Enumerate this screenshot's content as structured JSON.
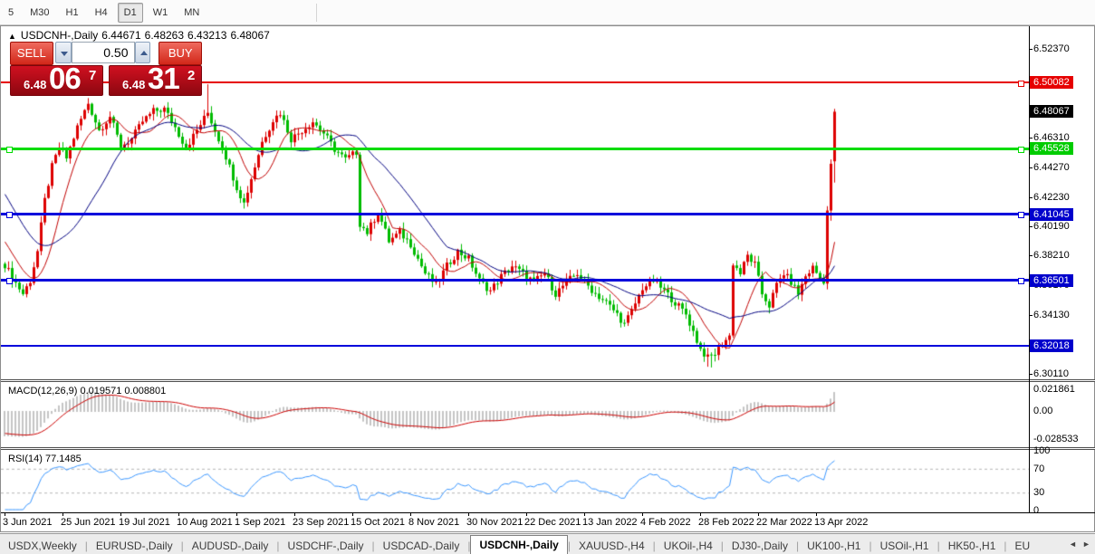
{
  "toolbar": {
    "timeframes": [
      "5",
      "M30",
      "H1",
      "H4",
      "D1",
      "W1",
      "MN"
    ],
    "active_timeframe": "D1"
  },
  "chart": {
    "title_symbol": "USDCNH-,Daily",
    "title_open": "6.44671",
    "title_high": "6.48263",
    "title_low": "6.43213",
    "title_close": "6.48067",
    "collapse_arrow": "▲",
    "trade_panel": {
      "sell_label": "SELL",
      "buy_label": "BUY",
      "volume": "0.50",
      "sell_price_prefix": "6.48",
      "sell_price_big": "06",
      "sell_price_sup": "7",
      "buy_price_prefix": "6.48",
      "buy_price_big": "31",
      "buy_price_sup": "2"
    },
    "macd_label": "MACD(12,26,9) 0.019571 0.008801",
    "rsi_label": "RSI(14) 77.1485"
  },
  "price_axis": {
    "ticks": [
      {
        "label": "6.52370",
        "price": 6.5237
      },
      {
        "label": "6.46310",
        "price": 6.4631
      },
      {
        "label": "6.44270",
        "price": 6.4427
      },
      {
        "label": "6.42230",
        "price": 6.4223
      },
      {
        "label": "6.40190",
        "price": 6.4019
      },
      {
        "label": "6.38210",
        "price": 6.3821
      },
      {
        "label": "6.36170",
        "price": 6.3617
      },
      {
        "label": "6.34130",
        "price": 6.3413
      },
      {
        "label": "6.30110",
        "price": 6.3011
      }
    ],
    "badges": [
      {
        "label": "6.50082",
        "price": 6.50082,
        "bg": "#e60000",
        "fg": "#ffffff"
      },
      {
        "label": "6.48067",
        "price": 6.48067,
        "bg": "#000000",
        "fg": "#ffffff"
      },
      {
        "label": "6.45528",
        "price": 6.45528,
        "bg": "#00cc00",
        "fg": "#ffffff"
      },
      {
        "label": "6.41045",
        "price": 6.41045,
        "bg": "#0000cc",
        "fg": "#ffffff"
      },
      {
        "label": "6.36501",
        "price": 6.36501,
        "bg": "#0000cc",
        "fg": "#ffffff"
      },
      {
        "label": "6.32018",
        "price": 6.32018,
        "bg": "#0000cc",
        "fg": "#ffffff"
      }
    ]
  },
  "macd_axis": [
    {
      "label": "0.021861",
      "value": 0.021861
    },
    {
      "label": "0.00",
      "value": 0
    },
    {
      "label": "-0.028533",
      "value": -0.028533
    }
  ],
  "rsi_axis": [
    {
      "label": "100",
      "value": 100
    },
    {
      "label": "70",
      "value": 70
    },
    {
      "label": "30",
      "value": 30
    },
    {
      "label": "0",
      "value": 0
    }
  ],
  "date_axis": [
    "3 Jun 2021",
    "25 Jun 2021",
    "19 Jul 2021",
    "10 Aug 2021",
    "1 Sep 2021",
    "23 Sep 2021",
    "15 Oct 2021",
    "8 Nov 2021",
    "30 Nov 2021",
    "22 Dec 2021",
    "13 Jan 2022",
    "4 Feb 2022",
    "28 Feb 2022",
    "22 Mar 2022",
    "13 Apr 2022"
  ],
  "tabs": {
    "items": [
      "USDX,Weekly",
      "EURUSD-,Daily",
      "AUDUSD-,Daily",
      "USDCHF-,Daily",
      "USDCAD-,Daily",
      "USDCNH-,Daily",
      "XAUUSD-,H4",
      "UKOil-,H4",
      "DJ30-,Daily",
      "UK100-,H1",
      "USOil-,H1",
      "HK50-,H1",
      "EU"
    ],
    "active": "USDCNH-,Daily",
    "scroll_left": "◄",
    "scroll_right": "►"
  },
  "chart_data": {
    "type": "candlestick",
    "symbol": "USDCNH",
    "timeframe": "Daily",
    "up_color": "#dd0000",
    "down_color": "#00bb00",
    "visible_range": {
      "start": "3 Jun 2021",
      "end": "22 Apr 2022",
      "bars": 230
    },
    "price_range": [
      6.3011,
      6.5237
    ],
    "last_bar_ohlc": {
      "open": 6.44671,
      "high": 6.48263,
      "low": 6.43213,
      "close": 6.48067
    },
    "horizontal_lines": [
      {
        "price": 6.50082,
        "color": "#e60000",
        "thickness": 2,
        "handles": [
          "right"
        ]
      },
      {
        "price": 6.45528,
        "color": "#00dc00",
        "thickness": 3,
        "handles": [
          "left",
          "right"
        ]
      },
      {
        "price": 6.41045,
        "color": "#0000dc",
        "thickness": 3,
        "handles": [
          "left",
          "right"
        ]
      },
      {
        "price": 6.36501,
        "color": "#0000dc",
        "thickness": 3,
        "handles": [
          "left",
          "right"
        ]
      },
      {
        "price": 6.32018,
        "color": "#0000dc",
        "thickness": 2,
        "handles": []
      }
    ],
    "price_anchors": [
      [
        0,
        6.376
      ],
      [
        2,
        6.367
      ],
      [
        5,
        6.356
      ],
      [
        7,
        6.365
      ],
      [
        9,
        6.385
      ],
      [
        11,
        6.42
      ],
      [
        13,
        6.443
      ],
      [
        15,
        6.456
      ],
      [
        17,
        6.449
      ],
      [
        20,
        6.47
      ],
      [
        23,
        6.4865
      ],
      [
        26,
        6.468
      ],
      [
        29,
        6.4775
      ],
      [
        32,
        6.457
      ],
      [
        35,
        6.462
      ],
      [
        38,
        6.474
      ],
      [
        41,
        6.481
      ],
      [
        44,
        6.4825
      ],
      [
        47,
        6.47
      ],
      [
        50,
        6.456
      ],
      [
        53,
        6.468
      ],
      [
        56,
        6.48
      ],
      [
        58,
        6.468
      ],
      [
        61,
        6.45
      ],
      [
        64,
        6.429
      ],
      [
        66,
        6.418
      ],
      [
        68,
        6.435
      ],
      [
        71,
        6.46
      ],
      [
        74,
        6.475
      ],
      [
        76,
        6.48
      ],
      [
        79,
        6.462
      ],
      [
        82,
        6.468
      ],
      [
        85,
        6.474
      ],
      [
        88,
        6.466
      ],
      [
        91,
        6.455
      ],
      [
        94,
        6.448
      ],
      [
        97,
        6.453
      ],
      [
        98,
        6.404
      ],
      [
        100,
        6.398
      ],
      [
        103,
        6.412
      ],
      [
        106,
        6.392
      ],
      [
        109,
        6.398
      ],
      [
        112,
        6.39
      ],
      [
        116,
        6.37
      ],
      [
        119,
        6.362
      ],
      [
        122,
        6.375
      ],
      [
        125,
        6.385
      ],
      [
        128,
        6.38
      ],
      [
        131,
        6.365
      ],
      [
        134,
        6.358
      ],
      [
        137,
        6.368
      ],
      [
        140,
        6.375
      ],
      [
        143,
        6.37
      ],
      [
        146,
        6.364
      ],
      [
        149,
        6.37
      ],
      [
        152,
        6.356
      ],
      [
        155,
        6.364
      ],
      [
        158,
        6.37
      ],
      [
        160,
        6.364
      ],
      [
        163,
        6.356
      ],
      [
        166,
        6.35
      ],
      [
        169,
        6.342
      ],
      [
        171,
        6.335
      ],
      [
        173,
        6.344
      ],
      [
        176,
        6.36
      ],
      [
        179,
        6.365
      ],
      [
        182,
        6.358
      ],
      [
        185,
        6.35
      ],
      [
        188,
        6.342
      ],
      [
        190,
        6.33
      ],
      [
        192,
        6.318
      ],
      [
        194,
        6.312
      ],
      [
        196,
        6.315
      ],
      [
        198,
        6.322
      ],
      [
        200,
        6.327
      ],
      [
        201,
        6.377
      ],
      [
        203,
        6.37
      ],
      [
        205,
        6.382
      ],
      [
        207,
        6.376
      ],
      [
        209,
        6.356
      ],
      [
        211,
        6.348
      ],
      [
        213,
        6.362
      ],
      [
        215,
        6.37
      ],
      [
        217,
        6.364
      ],
      [
        219,
        6.356
      ],
      [
        221,
        6.368
      ],
      [
        223,
        6.374
      ],
      [
        226,
        6.363
      ],
      [
        227,
        6.413
      ],
      [
        228,
        6.445
      ],
      [
        229,
        6.48067
      ]
    ],
    "wick_spikes": {
      "23": {
        "h": 6.49
      },
      "56": {
        "h": 6.4995
      },
      "194": {
        "l": 6.306
      },
      "195": {
        "l": 6.3055
      }
    },
    "last_candles": [
      {
        "i": 227,
        "o": 6.363,
        "h": 6.416,
        "l": 6.359,
        "c": 6.413
      },
      {
        "i": 228,
        "o": 6.413,
        "h": 6.448,
        "l": 6.406,
        "c": 6.445
      },
      {
        "i": 229,
        "o": 6.44671,
        "h": 6.48263,
        "l": 6.43213,
        "c": 6.48067
      }
    ],
    "moving_averages": [
      {
        "period": 10,
        "color": "#c00000"
      },
      {
        "period": 25,
        "color": "#000080"
      }
    ],
    "macd": {
      "fast": 12,
      "slow": 26,
      "signal": 9,
      "current_main": 0.019571,
      "current_signal": 0.008801,
      "range": [
        -0.028533,
        0.021861
      ],
      "histogram_color": "#c4c4c4",
      "signal_color": "#cc0000"
    },
    "rsi": {
      "period": 14,
      "current": 77.1485,
      "levels": [
        70,
        30
      ],
      "range": [
        0,
        100
      ],
      "color": "#3a96ff"
    }
  }
}
